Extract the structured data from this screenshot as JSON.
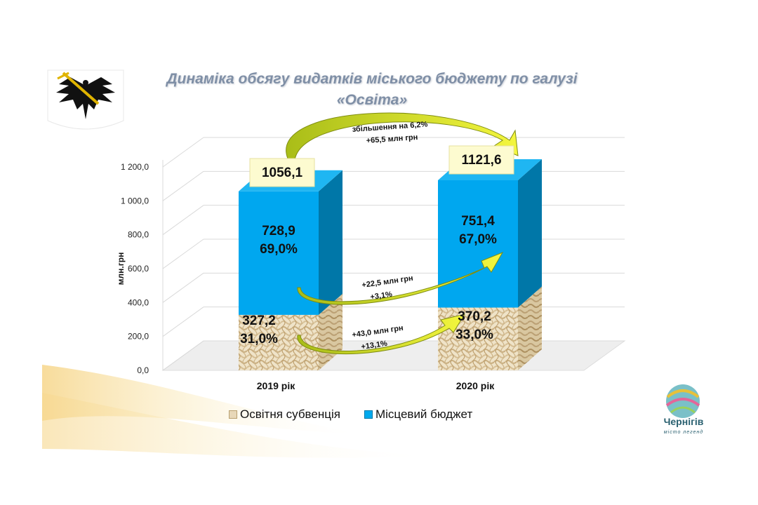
{
  "slide": {
    "title_line1": "Динаміка обсягу видатків  міського бюджету по галузі",
    "title_line2": "«Освіта»",
    "logo_city": "Чернігів",
    "logo_tagline": "місто легенд"
  },
  "chart_data": {
    "type": "bar",
    "stacked": true,
    "title": "Динаміка обсягу видатків  міського бюджету по галузі «Освіта»",
    "ylabel": "млн.грн",
    "xlabel": "",
    "ylim": [
      0,
      1200
    ],
    "yticks": [
      0,
      200,
      400,
      600,
      800,
      1000,
      1200
    ],
    "ytick_labels": [
      "0,0",
      "200,0",
      "400,0",
      "600,0",
      "800,0",
      "1 000,0",
      "1 200,0"
    ],
    "categories": [
      "2019 рік",
      "2020 рік"
    ],
    "series": [
      {
        "name": "Освітня субвенція",
        "values": [
          327.2,
          370.2
        ],
        "labels": [
          "327,2",
          "370,2"
        ],
        "shares": [
          "31,0%",
          "33,0%"
        ],
        "color": "#e8d8b8"
      },
      {
        "name": "Місцевий бюджет",
        "values": [
          728.9,
          751.4
        ],
        "labels": [
          "728,9",
          "751,4"
        ],
        "shares": [
          "69,0%",
          "67,0%"
        ],
        "color": "#00aaee"
      }
    ],
    "totals": [
      "1056,1",
      "1121,6"
    ],
    "totals_values": [
      1056.1,
      1121.6
    ],
    "grid": true,
    "legend": "bottom",
    "annotations": {
      "total_change": [
        "збільшення на 6,2%",
        "+65,5 млн грн"
      ],
      "local_change": [
        "+22,5 млн грн",
        "+3,1%"
      ],
      "subvention_change": [
        "+43,0 млн грн",
        "+13,1%"
      ]
    }
  }
}
